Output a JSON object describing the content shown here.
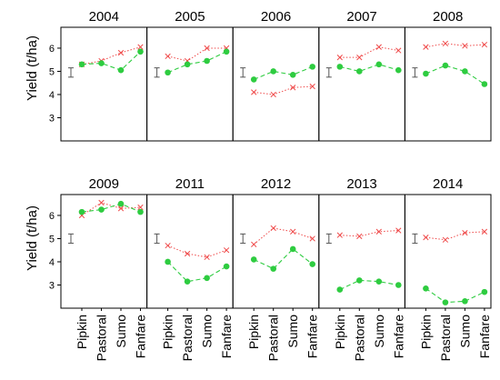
{
  "figure": {
    "ylabel": "Yield (t/ha)",
    "categories": [
      "Pipkin",
      "Pastoral",
      "Sumo",
      "Fanfare"
    ],
    "yticks": [
      3,
      4,
      5,
      6
    ],
    "ylim": [
      2,
      6.9
    ]
  },
  "chart_data": {
    "type": "line",
    "layout": "small-multiples 2 rows x 5 columns",
    "ylabel": "Yield (t/ha)",
    "categories": [
      "Pipkin",
      "Pastoral",
      "Sumo",
      "Fanfare"
    ],
    "ylim": [
      2,
      6.9
    ],
    "grid": false,
    "markers": {
      "red": "cross",
      "green": "filled circle"
    },
    "colors": {
      "red_series": "#ef4a4a",
      "green_series": "#2ecc40",
      "error_bar": "#555555"
    },
    "panels": [
      {
        "title": "2004",
        "red": [
          5.3,
          5.45,
          5.8,
          6.05
        ],
        "green": [
          5.3,
          5.35,
          5.05,
          5.85
        ],
        "errorbar": {
          "center": 4.95,
          "half": 0.2
        }
      },
      {
        "title": "2005",
        "red": [
          5.65,
          5.45,
          6.0,
          6.0
        ],
        "green": [
          4.95,
          5.3,
          5.45,
          5.85
        ],
        "errorbar": {
          "center": 4.95,
          "half": 0.2
        }
      },
      {
        "title": "2006",
        "red": [
          4.1,
          4.0,
          4.3,
          4.35
        ],
        "green": [
          4.65,
          5.0,
          4.85,
          5.2
        ],
        "errorbar": {
          "center": 4.95,
          "half": 0.2
        }
      },
      {
        "title": "2007",
        "red": [
          5.6,
          5.6,
          6.05,
          5.9
        ],
        "green": [
          5.2,
          5.0,
          5.3,
          5.05
        ],
        "errorbar": {
          "center": 4.95,
          "half": 0.2
        }
      },
      {
        "title": "2008",
        "red": [
          6.05,
          6.2,
          6.1,
          6.15
        ],
        "green": [
          4.9,
          5.25,
          5.0,
          4.45
        ],
        "errorbar": {
          "center": 4.95,
          "half": 0.2
        }
      },
      {
        "title": "2009",
        "red": [
          6.0,
          6.55,
          6.3,
          6.35
        ],
        "green": [
          6.15,
          6.25,
          6.5,
          6.15
        ],
        "errorbar": {
          "center": 5.0,
          "half": 0.2
        }
      },
      {
        "title": "2011",
        "red": [
          4.7,
          4.35,
          4.2,
          4.5
        ],
        "green": [
          4.0,
          3.15,
          3.3,
          3.8
        ],
        "errorbar": {
          "center": 5.0,
          "half": 0.2
        }
      },
      {
        "title": "2012",
        "red": [
          4.75,
          5.45,
          5.3,
          5.0
        ],
        "green": [
          4.1,
          3.7,
          4.55,
          3.9
        ],
        "errorbar": {
          "center": 5.0,
          "half": 0.2
        }
      },
      {
        "title": "2013",
        "red": [
          5.15,
          5.1,
          5.3,
          5.35
        ],
        "green": [
          2.8,
          3.2,
          3.15,
          3.0
        ],
        "errorbar": {
          "center": 5.0,
          "half": 0.2
        }
      },
      {
        "title": "2014",
        "red": [
          5.05,
          4.95,
          5.25,
          5.3
        ],
        "green": [
          2.85,
          2.25,
          2.3,
          2.7
        ],
        "errorbar": {
          "center": 5.0,
          "half": 0.2
        }
      }
    ]
  }
}
